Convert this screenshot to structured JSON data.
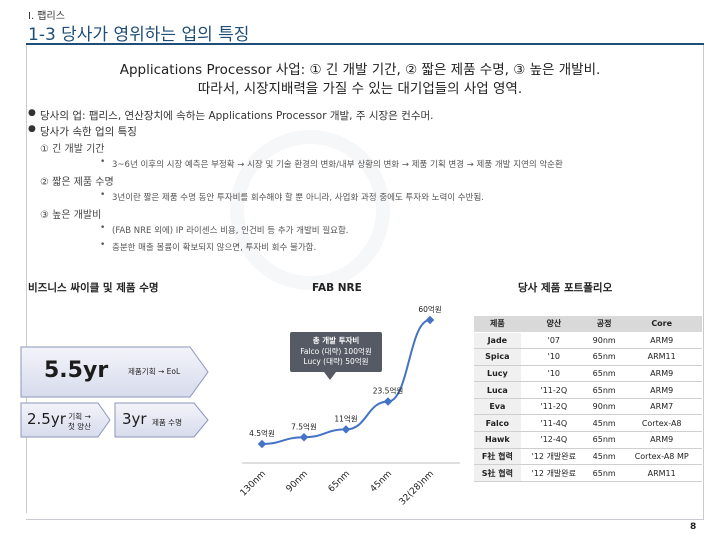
{
  "header": {
    "section": "I. 팹리스",
    "title": "1-3 당사가 영위하는 업의 특징"
  },
  "headline": {
    "line1": "Applications Processor 사업: ① 긴 개발 기간, ② 짧은 제품 수명, ③ 높은 개발비.",
    "line2": "따라서, 시장지배력을 가질 수 있는 대기업들의 사업 영역."
  },
  "bullets": {
    "b1": "당사의 업: 팹리스, 연산장치에 속하는 Applications Processor 개발, 주 시장은 컨수머.",
    "b2": "당사가 속한 업의 특징",
    "s1": "① 긴 개발 기간",
    "s1d1": "3~6년 이후의 시장 예측은 부정확 → 시장 및 기술 환경의 변화/내부 상황의 변화 → 제품 기획 변경 → 제품 개발 지연의 악순환",
    "s2": "② 짧은 제품 수명",
    "s2d1": "3년이란 짧은 제품 수명 동안 투자비를 회수해야 할 뿐 아니라, 사업화 과정 중에도 투자와 노력이 수반됨.",
    "s3": "③ 높은 개발비",
    "s3d1": "(FAB NRE 외에) IP 라이센스 비용, 인건비 등 추가 개발비 필요함.",
    "s3d2": "충분한 매출 볼륨이 확보되지 않으면, 투자비 회수 불가함."
  },
  "lifecycle": {
    "heading": "비즈니스 싸이클 및 제품 수명",
    "total": "5.5yr",
    "total_label": "제품기획 → EoL",
    "dev": "2.5yr",
    "dev_label1": "기획 →",
    "dev_label2": "첫 양산",
    "life": "3yr",
    "life_label": "제품 수명"
  },
  "chart_callout": {
    "title": "총 개발 투자비",
    "line1": "Falco (대략) 100억원",
    "line2": "Lucy (대략) 50억원"
  },
  "chart_data": {
    "type": "line",
    "title": "FAB NRE",
    "categories": [
      "130nm",
      "90nm",
      "65nm",
      "45nm",
      "32(28)nm"
    ],
    "values": [
      4.5,
      7.5,
      11,
      23.5,
      60
    ],
    "data_labels": [
      "4.5억원",
      "7.5억원",
      "11억원",
      "23.5억원",
      "60억원"
    ],
    "ylim": [
      0,
      60
    ],
    "color": "#4472c4"
  },
  "portfolio": {
    "heading": "당사 제품 포트폴리오",
    "columns": [
      "제품",
      "양산",
      "공정",
      "Core"
    ],
    "rows": [
      [
        "Jade",
        "'07",
        "90nm",
        "ARM9"
      ],
      [
        "Spica",
        "'10",
        "65nm",
        "ARM11"
      ],
      [
        "Lucy",
        "'10",
        "65nm",
        "ARM9"
      ],
      [
        "Luca",
        "'11-2Q",
        "65nm",
        "ARM9"
      ],
      [
        "Eva",
        "'11-2Q",
        "90nm",
        "ARM7"
      ],
      [
        "Falco",
        "'11-4Q",
        "45nm",
        "Cortex-A8"
      ],
      [
        "Hawk",
        "'12-4Q",
        "65nm",
        "ARM9"
      ],
      [
        "F社 협력",
        "'12 개발완료",
        "45nm",
        "Cortex-A8 MP"
      ],
      [
        "S社 협력",
        "'12 개발완료",
        "65nm",
        "ARM11"
      ]
    ]
  },
  "footer": {
    "page": "8"
  }
}
